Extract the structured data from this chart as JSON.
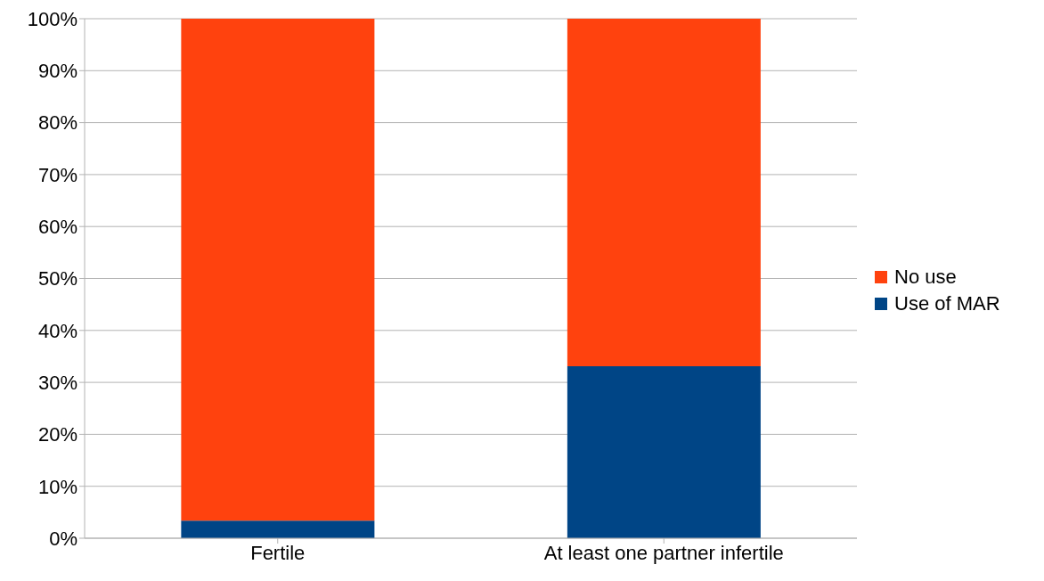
{
  "chart_data": {
    "type": "bar",
    "stacked": true,
    "categories": [
      "Fertile",
      "At least one partner infertile"
    ],
    "series": [
      {
        "name": "Use of MAR",
        "color": "#004586",
        "values": [
          3.4,
          33.1
        ]
      },
      {
        "name": "No use",
        "color": "#ff420e",
        "values": [
          96.6,
          66.9
        ]
      }
    ],
    "ylim": [
      0,
      100
    ],
    "yticks": [
      {
        "value": 0,
        "label": "0%"
      },
      {
        "value": 10,
        "label": "10%"
      },
      {
        "value": 20,
        "label": "20%"
      },
      {
        "value": 30,
        "label": "30%"
      },
      {
        "value": 40,
        "label": "40%"
      },
      {
        "value": 50,
        "label": "50%"
      },
      {
        "value": 60,
        "label": "60%"
      },
      {
        "value": 70,
        "label": "70%"
      },
      {
        "value": 80,
        "label": "80%"
      },
      {
        "value": 90,
        "label": "90%"
      },
      {
        "value": 100,
        "label": "100%"
      }
    ],
    "grid": "y",
    "legend": "right"
  }
}
